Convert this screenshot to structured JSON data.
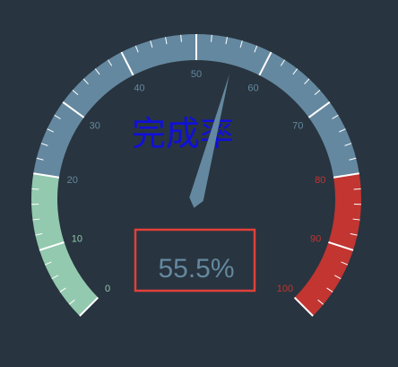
{
  "chart_data": {
    "type": "gauge",
    "title": "完成率",
    "value": 55.5,
    "value_label": "55.5%",
    "min": 0,
    "max": 100,
    "axis_labels": [
      "0",
      "10",
      "20",
      "30",
      "40",
      "50",
      "60",
      "70",
      "80",
      "90",
      "100"
    ],
    "bands": [
      {
        "from": 0,
        "to": 20,
        "color": "#93c9af"
      },
      {
        "from": 20,
        "to": 80,
        "color": "#64889f"
      },
      {
        "from": 80,
        "to": 100,
        "color": "#c23531"
      }
    ],
    "pointer_color": "#64889f",
    "title_color": "#1010d8",
    "value_color": "#64889f",
    "value_box_color": "#e0403a"
  }
}
